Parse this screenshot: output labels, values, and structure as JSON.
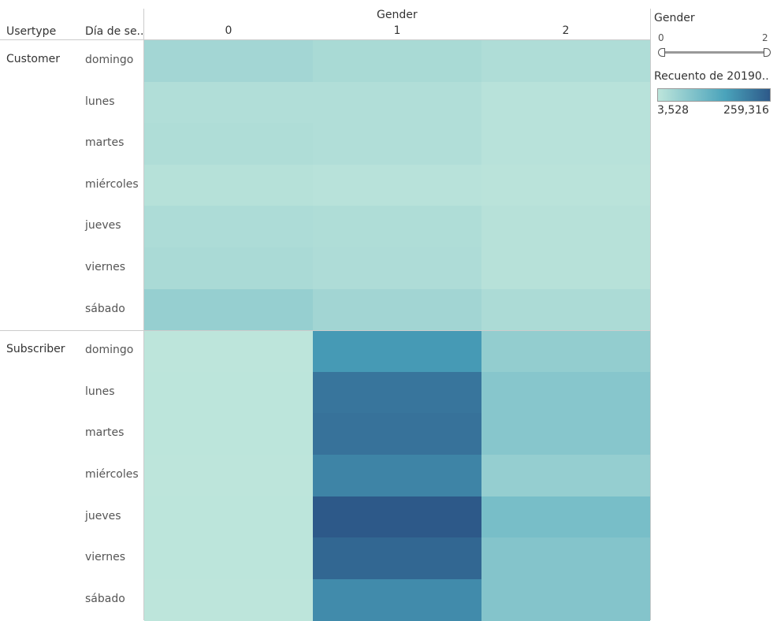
{
  "headers": {
    "row_header_1": "Usertype",
    "row_header_2": "Día de se..",
    "column_header": "Gender"
  },
  "legend": {
    "filter_title": "Gender",
    "filter_min": "0",
    "filter_max": "2",
    "color_title": "Recuento de 20190..",
    "color_min_label": "3,528",
    "color_max_label": "259,316",
    "color_low": "#bde5db",
    "color_mid": "#4aa3bb",
    "color_high": "#2d5989"
  },
  "chart_data": {
    "type": "heatmap",
    "x_title": "Gender",
    "columns": [
      "0",
      "1",
      "2"
    ],
    "groups": [
      {
        "usertype": "Customer",
        "days": [
          "domingo",
          "lunes",
          "martes",
          "miércoles",
          "jueves",
          "viernes",
          "sábado"
        ],
        "values": [
          [
            38000,
            30000,
            22000
          ],
          [
            20000,
            20000,
            10000
          ],
          [
            22000,
            20000,
            10000
          ],
          [
            13000,
            10000,
            8000
          ],
          [
            25000,
            22000,
            12000
          ],
          [
            29000,
            24000,
            12000
          ],
          [
            55000,
            40000,
            26000
          ]
        ]
      },
      {
        "usertype": "Subscriber",
        "days": [
          "domingo",
          "lunes",
          "martes",
          "miércoles",
          "jueves",
          "viernes",
          "sábado"
        ],
        "values": [
          [
            4000,
            170000,
            60000
          ],
          [
            4500,
            220000,
            75000
          ],
          [
            4500,
            225000,
            75000
          ],
          [
            4000,
            200000,
            57000
          ],
          [
            4500,
            259316,
            95000
          ],
          [
            4500,
            240000,
            80000
          ],
          [
            3528,
            190000,
            80000
          ]
        ]
      }
    ],
    "color_range": [
      3528,
      259316
    ]
  }
}
